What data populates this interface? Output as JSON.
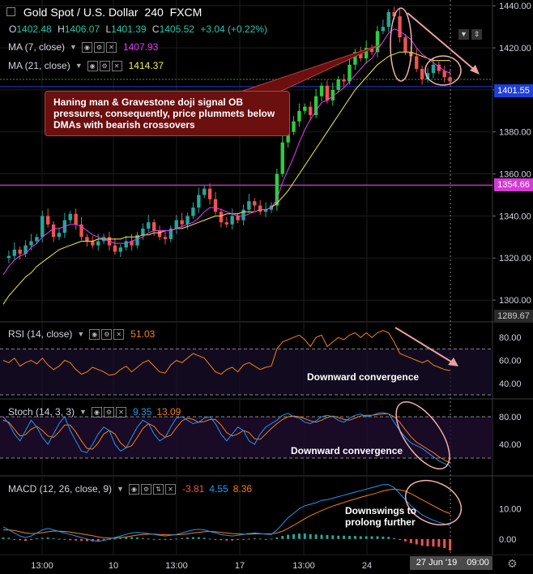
{
  "header": {
    "symbol": "Gold Spot / U.S. Dollar",
    "interval": "240",
    "source": "FXCM",
    "ohlc": {
      "o_label": "O",
      "o": "1402.48",
      "h_label": "H",
      "h": "1406.07",
      "l_label": "L",
      "l": "1401.39",
      "c_label": "C",
      "c": "1405.52",
      "change": "+3.04 (+0.22%)"
    }
  },
  "indicators": {
    "ma7": {
      "label": "MA (7, close)",
      "value": "1407.93",
      "color": "#e040fb"
    },
    "ma21": {
      "label": "MA (21, close)",
      "value": "1414.37",
      "color": "#f2ee4d"
    },
    "rsi": {
      "label": "RSI (14, close)",
      "value": "51.03",
      "color": "#f57f17"
    },
    "stoch": {
      "label": "Stoch (14, 3, 3)",
      "k": "9.35",
      "d": "13.09",
      "k_color": "#2196f3",
      "d_color": "#f57f17"
    },
    "macd": {
      "label": "MACD (12, 26, close, 9)",
      "hist": "-3.81",
      "macd": "4.55",
      "signal": "8.36"
    }
  },
  "price_axis": {
    "ticks": [
      "1440.00",
      "1420.00",
      "1400.00",
      "1380.00",
      "1360.00",
      "1340.00",
      "1320.00",
      "1300.00"
    ],
    "last_price": "1401.55",
    "ref_price": "1354.66",
    "bottom_value": "1289.67"
  },
  "rsi_axis": [
    "80.00",
    "60.00",
    "40.00"
  ],
  "stoch_axis": [
    "80.00",
    "40.00"
  ],
  "macd_axis": [
    "10.00",
    "0.00"
  ],
  "time_axis": [
    "13:00",
    "10",
    "13:00",
    "17",
    "13:00",
    "24"
  ],
  "date_tag": "27 Jun '19",
  "time_tag": "09:00",
  "annotations": {
    "callout": "Haning man & Gravestone doji signal OB pressures, consequently, price plummets below DMAs with bearish crossovers",
    "rsi_note": "Downward convergence",
    "stoch_note": "Downward convergence",
    "macd_note": "Downswings to prolong further"
  },
  "colors": {
    "up": "#26a69a",
    "up_bright": "#2ecc40",
    "down": "#ef5350",
    "grid": "#1c1c1c",
    "last_price_line": "#1e3fd8",
    "ref_line": "#d43bd4",
    "arrow": "#e8a0a0"
  },
  "chart_data": {
    "type": "candlestick",
    "title": "Gold Spot / U.S. Dollar 240 FXCM",
    "ylim": [
      1290,
      1442
    ],
    "price_path": [
      1320,
      1321,
      1324,
      1322,
      1326,
      1328,
      1330,
      1340,
      1336,
      1330,
      1332,
      1338,
      1341,
      1336,
      1330,
      1328,
      1326,
      1328,
      1330,
      1326,
      1323,
      1325,
      1328,
      1326,
      1331,
      1334,
      1337,
      1333,
      1330,
      1329,
      1334,
      1338,
      1336,
      1340,
      1344,
      1350,
      1353,
      1348,
      1342,
      1337,
      1336,
      1340,
      1338,
      1343,
      1347,
      1345,
      1342,
      1343,
      1345,
      1360,
      1375,
      1380,
      1385,
      1390,
      1392,
      1388,
      1397,
      1402,
      1395,
      1400,
      1405,
      1404,
      1412,
      1418,
      1415,
      1420,
      1418,
      1428,
      1430,
      1437,
      1435,
      1425,
      1418,
      1416,
      1410,
      1405,
      1408,
      1412,
      1409,
      1406,
      1404
    ],
    "ma7_path": [
      1312,
      1316,
      1319,
      1321,
      1322,
      1325,
      1327,
      1330,
      1332,
      1334,
      1334,
      1335,
      1336,
      1336,
      1335,
      1333,
      1331,
      1330,
      1329,
      1328,
      1327,
      1327,
      1327,
      1328,
      1329,
      1330,
      1332,
      1333,
      1333,
      1333,
      1333,
      1334,
      1335,
      1336,
      1337,
      1339,
      1342,
      1344,
      1344,
      1343,
      1342,
      1341,
      1340,
      1340,
      1341,
      1342,
      1343,
      1343,
      1344,
      1348,
      1356,
      1362,
      1368,
      1375,
      1381,
      1386,
      1390,
      1394,
      1395,
      1397,
      1399,
      1401,
      1404,
      1407,
      1410,
      1413,
      1415,
      1419,
      1423,
      1427,
      1429,
      1428,
      1426,
      1424,
      1420,
      1417,
      1415,
      1413,
      1411,
      1409,
      1408
    ],
    "ma21_path": [
      1298,
      1302,
      1305,
      1308,
      1311,
      1313,
      1316,
      1318,
      1320,
      1322,
      1324,
      1325,
      1326,
      1327,
      1328,
      1328,
      1328,
      1329,
      1329,
      1329,
      1329,
      1329,
      1330,
      1330,
      1330,
      1331,
      1331,
      1332,
      1332,
      1333,
      1333,
      1334,
      1334,
      1335,
      1336,
      1337,
      1338,
      1339,
      1340,
      1340,
      1341,
      1341,
      1341,
      1342,
      1342,
      1342,
      1343,
      1343,
      1344,
      1346,
      1349,
      1352,
      1356,
      1360,
      1364,
      1368,
      1372,
      1376,
      1380,
      1384,
      1388,
      1392,
      1396,
      1400,
      1403,
      1406,
      1409,
      1412,
      1414,
      1416,
      1417,
      1418,
      1418,
      1418,
      1417,
      1416,
      1415,
      1414,
      1414,
      1414,
      1414
    ],
    "rsi_ylim": [
      30,
      90
    ],
    "rsi": [
      60,
      58,
      62,
      55,
      58,
      60,
      57,
      62,
      56,
      52,
      55,
      60,
      58,
      52,
      48,
      50,
      54,
      52,
      50,
      47,
      48,
      52,
      55,
      50,
      54,
      58,
      60,
      55,
      50,
      49,
      56,
      60,
      58,
      62,
      66,
      64,
      62,
      56,
      50,
      48,
      52,
      54,
      50,
      56,
      58,
      55,
      52,
      54,
      55,
      70,
      76,
      78,
      80,
      82,
      78,
      72,
      80,
      82,
      72,
      76,
      80,
      78,
      82,
      84,
      80,
      84,
      80,
      84,
      86,
      84,
      76,
      66,
      64,
      62,
      60,
      58,
      60,
      56,
      54,
      52,
      51
    ],
    "stoch_ylim": [
      0,
      100
    ],
    "stoch_k": [
      80,
      70,
      55,
      45,
      60,
      75,
      65,
      50,
      40,
      55,
      70,
      80,
      60,
      45,
      30,
      28,
      40,
      55,
      65,
      60,
      40,
      30,
      35,
      50,
      65,
      75,
      70,
      55,
      45,
      50,
      65,
      78,
      80,
      75,
      70,
      72,
      78,
      80,
      70,
      55,
      45,
      55,
      65,
      60,
      45,
      40,
      55,
      65,
      70,
      75,
      82,
      85,
      80,
      78,
      72,
      70,
      74,
      80,
      82,
      80,
      75,
      72,
      78,
      82,
      84,
      80,
      82,
      85,
      86,
      84,
      72,
      60,
      50,
      42,
      38,
      34,
      28,
      22,
      16,
      12,
      9
    ],
    "stoch_d": [
      75,
      72,
      62,
      52,
      54,
      62,
      66,
      60,
      52,
      50,
      58,
      68,
      68,
      58,
      45,
      34,
      33,
      42,
      55,
      60,
      55,
      42,
      35,
      38,
      50,
      63,
      70,
      66,
      56,
      50,
      53,
      64,
      74,
      78,
      76,
      72,
      73,
      76,
      76,
      68,
      57,
      52,
      55,
      60,
      57,
      48,
      47,
      55,
      63,
      70,
      76,
      80,
      81,
      80,
      77,
      74,
      72,
      75,
      79,
      81,
      79,
      76,
      75,
      78,
      81,
      82,
      82,
      83,
      84,
      84,
      80,
      72,
      61,
      51,
      43,
      38,
      33,
      28,
      22,
      17,
      13
    ],
    "macd_ylim": [
      -3,
      19
    ],
    "macd": [
      4,
      3,
      2,
      1,
      0.5,
      1,
      2,
      3,
      3.5,
      3,
      2.5,
      2,
      1.5,
      1,
      0.5,
      0,
      -0.5,
      -0.8,
      -0.5,
      0,
      0.5,
      1,
      1.5,
      2,
      2.2,
      2,
      1.8,
      1.5,
      1.2,
      1,
      1.2,
      1.5,
      2,
      2.5,
      3,
      3.2,
      3,
      2.5,
      2,
      1.5,
      1.2,
      1,
      1.2,
      1.5,
      1.8,
      2,
      1.8,
      1.6,
      1.5,
      3,
      5,
      7,
      8.5,
      10,
      11,
      11.5,
      12,
      12.8,
      13,
      13.5,
      14,
      14.5,
      15,
      15.5,
      16,
      16.5,
      17,
      17.5,
      18,
      18,
      17,
      15,
      13,
      11,
      9.5,
      8,
      7,
      6.2,
      5.5,
      5,
      4.5
    ],
    "macd_signal": [
      3,
      3,
      2.8,
      2.4,
      2,
      1.8,
      1.9,
      2.1,
      2.4,
      2.6,
      2.6,
      2.5,
      2.3,
      2,
      1.7,
      1.4,
      1.1,
      0.7,
      0.4,
      0.3,
      0.3,
      0.5,
      0.7,
      1,
      1.3,
      1.5,
      1.6,
      1.6,
      1.5,
      1.4,
      1.4,
      1.4,
      1.5,
      1.7,
      2,
      2.2,
      2.4,
      2.5,
      2.4,
      2.2,
      2,
      1.8,
      1.7,
      1.6,
      1.6,
      1.7,
      1.7,
      1.7,
      1.7,
      2,
      2.6,
      3.5,
      4.5,
      5.6,
      6.7,
      7.7,
      8.6,
      9.4,
      10.2,
      10.9,
      11.5,
      12.1,
      12.7,
      13.2,
      13.8,
      14.3,
      14.8,
      15.3,
      15.9,
      16.3,
      16.5,
      16.3,
      15.8,
      15,
      14,
      13,
      12,
      11,
      10,
      9.1,
      8.4
    ],
    "macd_hist": [
      0.5,
      0.4,
      -0.2,
      -0.4,
      -0.6,
      -0.3,
      0.2,
      0.4,
      0.5,
      0.3,
      0.1,
      -0.2,
      -0.4,
      -0.5,
      -0.6,
      -0.7,
      -0.8,
      -0.7,
      -0.4,
      -0.2,
      0.1,
      0.3,
      0.5,
      0.6,
      0.5,
      0.3,
      0.1,
      -0.1,
      -0.2,
      -0.3,
      -0.1,
      0.1,
      0.3,
      0.5,
      0.6,
      0.6,
      0.4,
      0.1,
      -0.2,
      -0.4,
      -0.5,
      -0.5,
      -0.3,
      -0.1,
      0.1,
      0.2,
      0.1,
      0,
      0.1,
      0.5,
      1,
      1.4,
      1.6,
      1.8,
      1.8,
      1.6,
      1.5,
      1.4,
      1.3,
      1.2,
      1.1,
      1.1,
      1,
      1,
      0.9,
      0.9,
      0.9,
      0.9,
      0.8,
      0.7,
      0.3,
      -0.3,
      -0.8,
      -1.4,
      -1.8,
      -2.2,
      -2.4,
      -2.5,
      -2.6,
      -3,
      -3.8
    ]
  }
}
